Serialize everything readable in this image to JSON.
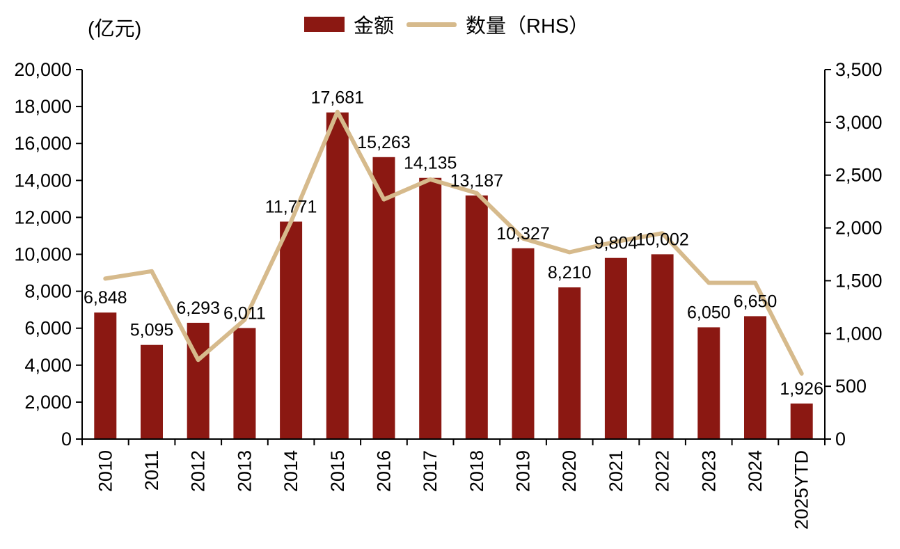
{
  "unit_label": "(亿元)",
  "legend": {
    "bar_label": "金额",
    "line_label": "数量（RHS）"
  },
  "colors": {
    "bar": "#8B1812",
    "line": "#D6BA8C",
    "text": "#000000",
    "axis": "#000000"
  },
  "chart_data": {
    "type": "bar",
    "subtype": "combo bar + line, dual y-axis",
    "title": "",
    "xlabel": "",
    "ylabel": "(亿元)",
    "grid": false,
    "legend_position": "top",
    "bar_data_labels": true,
    "categories": [
      "2010",
      "2011",
      "2012",
      "2013",
      "2014",
      "2015",
      "2016",
      "2017",
      "2018",
      "2019",
      "2020",
      "2021",
      "2022",
      "2023",
      "2024",
      "2025YTD"
    ],
    "series": [
      {
        "name": "金额",
        "type": "bar",
        "axis": "left",
        "values": [
          6848,
          5095,
          6293,
          6011,
          11771,
          17681,
          15263,
          14135,
          13187,
          10327,
          8210,
          9804,
          10002,
          6050,
          6650,
          1926
        ]
      },
      {
        "name": "数量（RHS）",
        "type": "line",
        "axis": "right",
        "values": [
          1520,
          1590,
          750,
          1130,
          2060,
          3100,
          2270,
          2460,
          2330,
          1900,
          1770,
          1870,
          1950,
          1480,
          1480,
          620
        ]
      }
    ],
    "left_axis": {
      "min": 0,
      "max": 20000,
      "step": 2000
    },
    "right_axis": {
      "min": 0,
      "max": 3500,
      "step": 500
    }
  }
}
